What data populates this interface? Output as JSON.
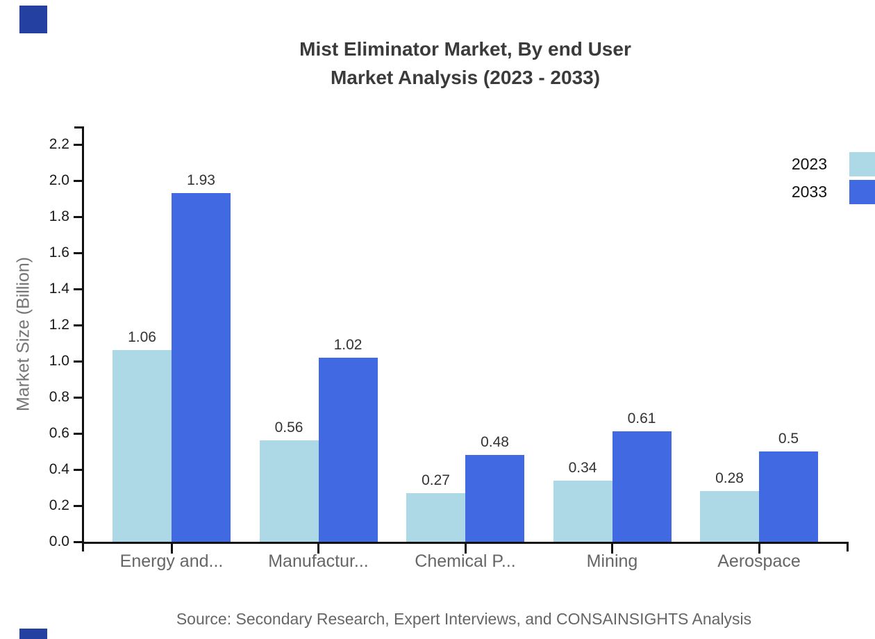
{
  "title": {
    "line1": "Mist Eliminator Market, By end User",
    "line2": "Market Analysis (2023 - 2033)"
  },
  "source": "Source: Secondary Research, Expert Interviews, and CONSAINSIGHTS Analysis",
  "colors": {
    "series_2023": "#ADD8E6",
    "series_2033": "#4169E1",
    "brand_square": "#2440A0",
    "axis": "#111111",
    "tick_label": "#1a1a1a",
    "category_label": "#666666",
    "axis_title": "#757575",
    "value_label": "#333333",
    "title_text": "#3b3b3b",
    "source_text": "#666666"
  },
  "chart_data": {
    "type": "bar",
    "title": "Mist Eliminator Market, By end User Market Analysis (2023 - 2033)",
    "categories": [
      "Energy and...",
      "Manufactur...",
      "Chemical P...",
      "Mining",
      "Aerospace"
    ],
    "series": [
      {
        "name": "2023",
        "color": "#ADD8E6",
        "values": [
          1.06,
          0.56,
          0.27,
          0.34,
          0.28
        ],
        "labels": [
          "1.06",
          "0.56",
          "0.27",
          "0.34",
          "0.28"
        ]
      },
      {
        "name": "2033",
        "color": "#4169E1",
        "values": [
          1.93,
          1.02,
          0.48,
          0.61,
          0.5
        ],
        "labels": [
          "1.93",
          "1.02",
          "0.48",
          "0.61",
          "0.5"
        ]
      }
    ],
    "xlabel": "",
    "ylabel": "Market Size (Billion)",
    "yticks": [
      "0.0",
      "0.2",
      "0.4",
      "0.6",
      "0.8",
      "1.0",
      "1.2",
      "1.4",
      "1.6",
      "1.8",
      "2.0",
      "2.2"
    ],
    "ylim": [
      0,
      2.3
    ],
    "grid": false,
    "legend_position": "top-right"
  }
}
